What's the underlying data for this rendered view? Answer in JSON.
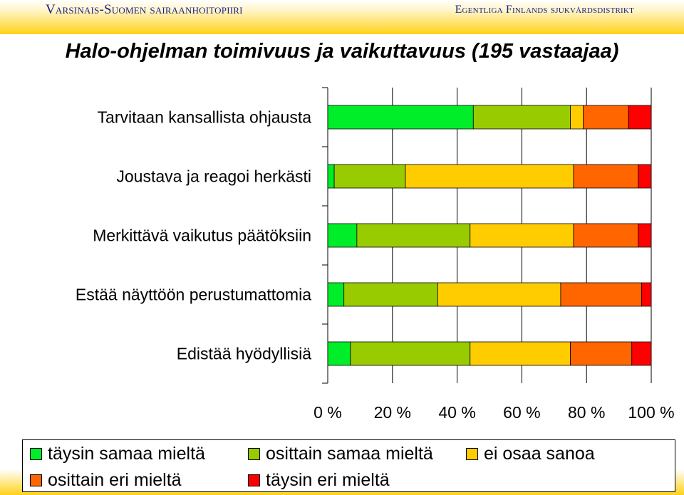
{
  "header": {
    "left": "Varsinais-Suomen sairaanhoitopiiri",
    "right": "Egentliga Finlands sjukvårdsdistrikt"
  },
  "chart_data": {
    "type": "bar",
    "orientation": "horizontal",
    "stacked": "percent",
    "title": "Halo-ohjelman toimivuus ja vaikuttavuus (195 vastaajaa)",
    "categories": [
      "Tarvitaan kansallista ohjausta",
      "Joustava ja reagoi herkästi",
      "Merkittävä vaikutus päätöksiin",
      "Estää näyttöön perustumattomia",
      "Edistää hyödyllisiä"
    ],
    "series": [
      {
        "name": "täysin samaa mieltä",
        "color": "#00ee2a",
        "values": [
          45,
          2,
          9,
          5,
          7
        ]
      },
      {
        "name": "osittain samaa mieltä",
        "color": "#99cc00",
        "values": [
          30,
          22,
          35,
          29,
          37
        ]
      },
      {
        "name": "ei osaa sanoa",
        "color": "#ffcc00",
        "values": [
          4,
          52,
          32,
          38,
          31
        ]
      },
      {
        "name": "osittain eri mieltä",
        "color": "#ff6600",
        "values": [
          14,
          20,
          20,
          25,
          19
        ]
      },
      {
        "name": "täysin eri mieltä",
        "color": "#ff0000",
        "values": [
          7,
          4,
          4,
          3,
          6
        ]
      }
    ],
    "xlim": [
      0,
      100
    ],
    "x_ticks": [
      "0 %",
      "20 %",
      "40 %",
      "60 %",
      "80 %",
      "100 %"
    ],
    "grid": true,
    "legend_position": "bottom"
  }
}
